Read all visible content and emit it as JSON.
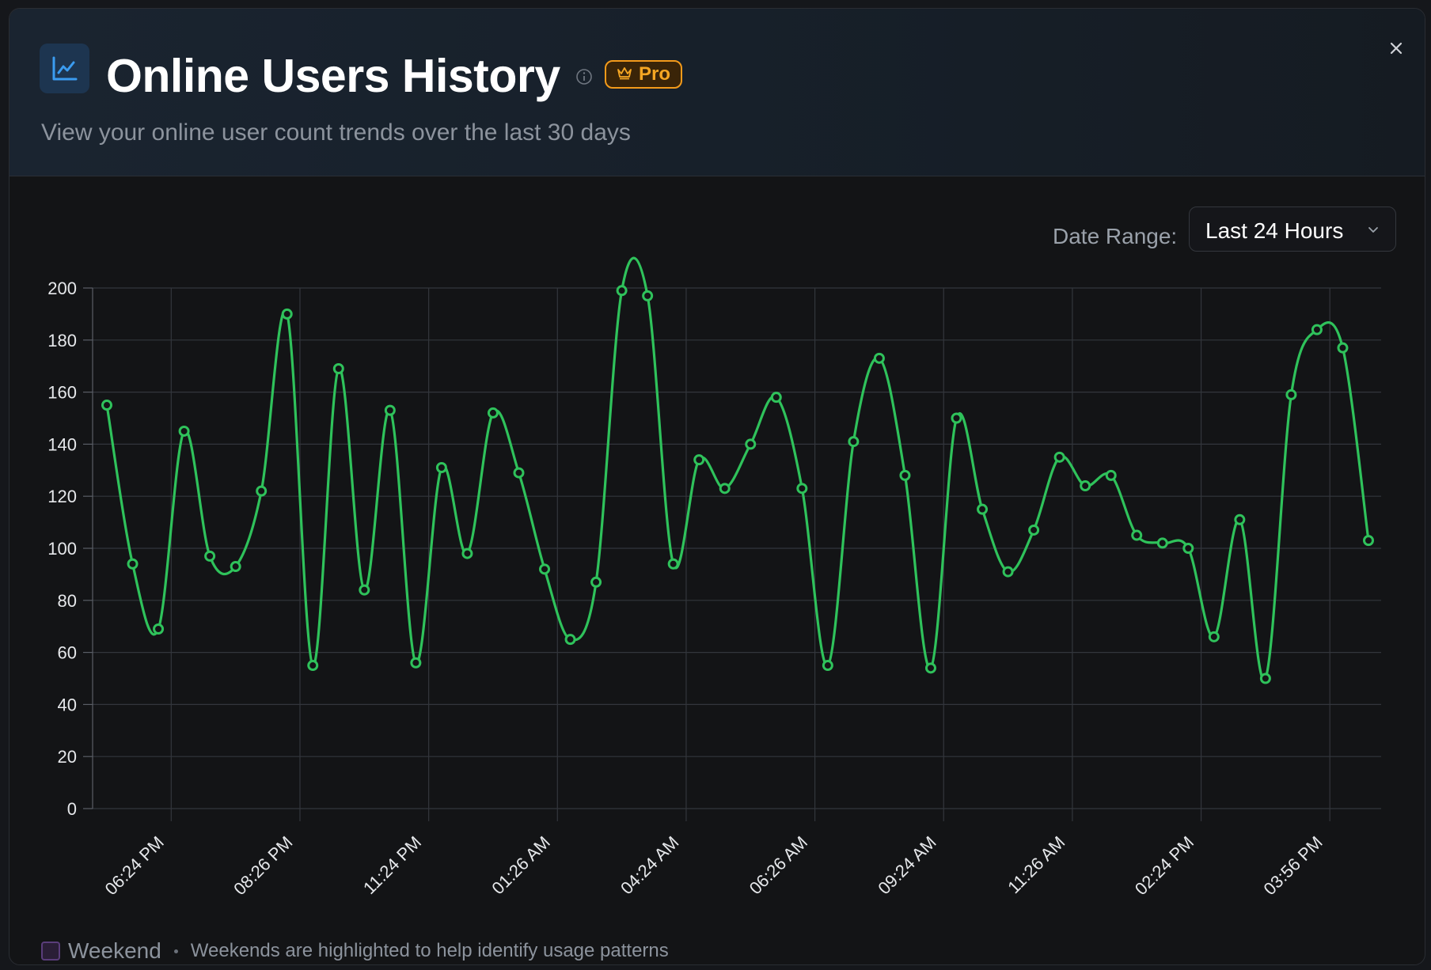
{
  "modal": {
    "title": "Online Users History",
    "badge": "Pro",
    "subtitle": "View your online user count trends over the last 30 days",
    "icons": {
      "header": "line-chart-icon",
      "info": "info-icon",
      "badge": "crown-icon",
      "close": "close-icon",
      "select": "chevron-down-icon"
    }
  },
  "controls": {
    "date_range_label": "Date Range:",
    "date_range_value": "Last 24 Hours"
  },
  "legend": {
    "label": "Weekend",
    "note": "Weekends are highlighted to help identify usage patterns"
  },
  "colors": {
    "line": "#2fc25b",
    "accent": "#f39a1a",
    "weekend": "#5a3d7a"
  },
  "chart_data": {
    "type": "line",
    "curve": "smooth",
    "markers": "hollow-circle",
    "grid": true,
    "ylim": [
      0,
      200
    ],
    "yticks": [
      0,
      20,
      40,
      60,
      80,
      100,
      120,
      140,
      160,
      180,
      200
    ],
    "xtick_labels": [
      "06:24 PM",
      "08:26 PM",
      "11:24 PM",
      "01:26 AM",
      "04:24 AM",
      "06:26 AM",
      "09:24 AM",
      "11:26 AM",
      "02:24 PM",
      "03:56 PM"
    ],
    "xtick_label_indices": [
      0,
      5,
      10,
      15,
      20,
      25,
      30,
      35,
      40,
      45
    ],
    "series": [
      {
        "values": [
          155,
          94,
          69,
          145,
          97,
          93,
          122,
          190,
          55,
          169,
          84,
          153,
          56,
          131,
          98,
          152,
          129,
          92,
          65,
          87,
          199,
          197,
          94,
          134,
          123,
          140,
          158,
          123,
          55,
          141,
          173,
          128,
          54,
          150,
          115,
          91,
          107,
          135,
          124,
          128,
          105,
          102,
          100,
          66,
          111,
          50,
          159,
          184,
          177,
          103
        ]
      }
    ]
  }
}
